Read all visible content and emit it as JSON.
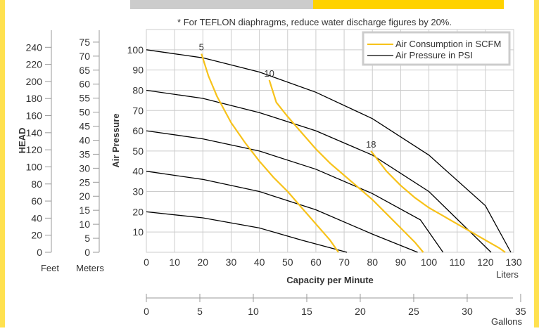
{
  "chart_data": {
    "type": "line",
    "note": "* For TEFLON diaphragms, reduce water discharge figures by 20%.",
    "xlabel": "Capacity per Minute",
    "ylabel": "Air Pressure",
    "head_label": "HEAD",
    "x_unit": "Liters",
    "x2_unit": "Gallons",
    "feet_unit": "Feet",
    "meters_unit": "Meters",
    "xlim": [
      0,
      130
    ],
    "ylim": [
      0,
      110
    ],
    "x_ticks": [
      0,
      10,
      20,
      30,
      40,
      50,
      60,
      70,
      80,
      90,
      100,
      110,
      120,
      130
    ],
    "y_ticks": [
      10,
      20,
      30,
      40,
      50,
      60,
      70,
      80,
      90,
      100
    ],
    "gallons_ticks": [
      0,
      5,
      10,
      15,
      20,
      25,
      30,
      35
    ],
    "feet_ticks": [
      0,
      20,
      40,
      60,
      80,
      100,
      120,
      140,
      160,
      180,
      200,
      220,
      240
    ],
    "meters_ticks": [
      0,
      5,
      10,
      15,
      20,
      25,
      30,
      35,
      40,
      45,
      50,
      55,
      60,
      65,
      70,
      75
    ],
    "grid": true,
    "legend": {
      "placement": "top-right",
      "entries": [
        {
          "label": "Air Consumption in SCFM",
          "color": "#f7c21a"
        },
        {
          "label": "Air Pressure in PSI",
          "color": "#000000"
        }
      ]
    },
    "pressure_series": [
      {
        "psi": 100,
        "points": [
          [
            0,
            100
          ],
          [
            20,
            96
          ],
          [
            40,
            89
          ],
          [
            60,
            79
          ],
          [
            80,
            66
          ],
          [
            100,
            48
          ],
          [
            120,
            23
          ],
          [
            129,
            0
          ]
        ]
      },
      {
        "psi": 80,
        "points": [
          [
            0,
            80
          ],
          [
            20,
            76
          ],
          [
            40,
            69
          ],
          [
            60,
            60
          ],
          [
            80,
            48
          ],
          [
            100,
            30
          ],
          [
            122,
            0
          ]
        ]
      },
      {
        "psi": 60,
        "points": [
          [
            0,
            60
          ],
          [
            20,
            56
          ],
          [
            40,
            50
          ],
          [
            60,
            41
          ],
          [
            80,
            29
          ],
          [
            97,
            16
          ],
          [
            105,
            0
          ]
        ]
      },
      {
        "psi": 40,
        "points": [
          [
            0,
            40
          ],
          [
            20,
            36
          ],
          [
            40,
            30
          ],
          [
            60,
            21
          ],
          [
            80,
            9
          ],
          [
            96,
            0
          ]
        ]
      },
      {
        "psi": 20,
        "points": [
          [
            0,
            20
          ],
          [
            20,
            17
          ],
          [
            40,
            12
          ],
          [
            55,
            6
          ],
          [
            71,
            0
          ]
        ]
      }
    ],
    "air_series": [
      {
        "label": "5",
        "points": [
          [
            19.5,
            98
          ],
          [
            22,
            87
          ],
          [
            25,
            77
          ],
          [
            30,
            64
          ],
          [
            35,
            54
          ],
          [
            40,
            45
          ],
          [
            45,
            37
          ],
          [
            50,
            30
          ],
          [
            55,
            22
          ],
          [
            60,
            14
          ],
          [
            65,
            6
          ],
          [
            68,
            0
          ]
        ]
      },
      {
        "label": "10",
        "points": [
          [
            43.5,
            85
          ],
          [
            46,
            74
          ],
          [
            50,
            67
          ],
          [
            55,
            59
          ],
          [
            60,
            51
          ],
          [
            65,
            44
          ],
          [
            70,
            38
          ],
          [
            75,
            32
          ],
          [
            80,
            26
          ],
          [
            85,
            19
          ],
          [
            90,
            12
          ],
          [
            95,
            5
          ],
          [
            98,
            0
          ]
        ]
      },
      {
        "label": "18",
        "points": [
          [
            79.5,
            50
          ],
          [
            85,
            40
          ],
          [
            90,
            33
          ],
          [
            95,
            27
          ],
          [
            100,
            22
          ],
          [
            105,
            18
          ],
          [
            110,
            14
          ],
          [
            115,
            10
          ],
          [
            120,
            6
          ],
          [
            125,
            2
          ],
          [
            127,
            0
          ]
        ]
      }
    ],
    "colors": {
      "frame": "#ffe14f",
      "header_gray": "#cccccc",
      "header_yellow": "#ffd200",
      "air": "#f7c21a",
      "pressure": "#000000",
      "grid": "#cccccc",
      "legend_border": "#cccccc"
    }
  }
}
